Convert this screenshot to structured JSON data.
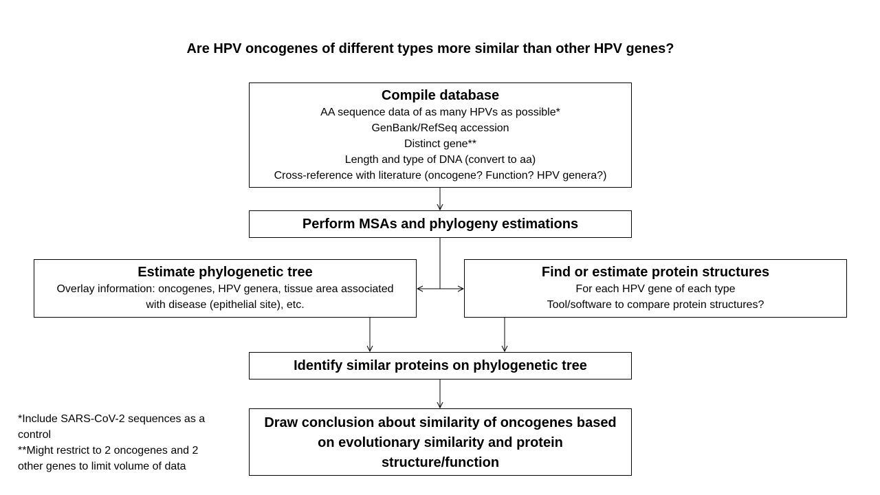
{
  "title": "Are HPV oncogenes of different types more similar than other HPV genes?",
  "compile": {
    "heading": "Compile database",
    "lines": [
      "AA sequence data of as many HPVs as possible*",
      "GenBank/RefSeq accession",
      "Distinct gene**",
      "Length and type of DNA (convert to aa)",
      "Cross-reference with literature (oncogene? Function? HPV genera?)"
    ]
  },
  "msa": {
    "heading": "Perform MSAs and phylogeny estimations"
  },
  "tree": {
    "heading": "Estimate phylogenetic tree",
    "lines": [
      "Overlay information: oncogenes, HPV genera, tissue area associated",
      "with disease (epithelial site), etc."
    ]
  },
  "structures": {
    "heading": "Find or estimate protein structures",
    "lines": [
      "For each HPV gene of each type",
      "Tool/software to compare protein structures?"
    ]
  },
  "identify": {
    "heading": "Identify similar proteins on phylogenetic tree"
  },
  "conclusion": {
    "heading_lines": [
      "Draw conclusion about similarity of oncogenes based",
      "on evolutionary similarity and protein",
      "structure/function"
    ]
  },
  "notes": [
    "*Include SARS-CoV-2 sequences as a",
    "control",
    "**Might restrict to 2 oncogenes and 2",
    "other genes to limit volume of data"
  ]
}
